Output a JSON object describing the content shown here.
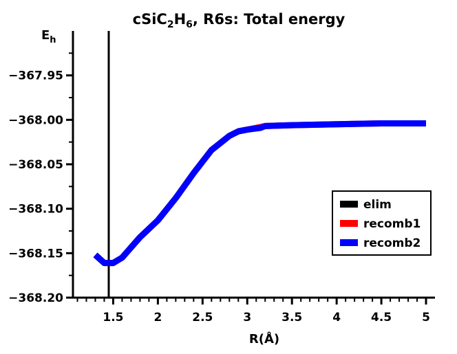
{
  "chart_data": {
    "type": "line",
    "title": {
      "main": "cSiC",
      "sub1": "2",
      "mid": "H",
      "sub2": "6",
      "rest": ", R6s: Total energy"
    },
    "ylabel": {
      "main": "E",
      "sub": "h"
    },
    "xlabel": "R(Å)",
    "xlim": [
      1.05,
      5.1
    ],
    "ylim": [
      -368.2,
      -367.9
    ],
    "xticks": [
      {
        "value": 1.5,
        "label": "1.5"
      },
      {
        "value": 2,
        "label": "2"
      },
      {
        "value": 2.5,
        "label": "2.5"
      },
      {
        "value": 3,
        "label": "3"
      },
      {
        "value": 3.5,
        "label": "3.5"
      },
      {
        "value": 4,
        "label": "4"
      },
      {
        "value": 4.5,
        "label": "4.5"
      },
      {
        "value": 5,
        "label": "5"
      }
    ],
    "yticks": [
      {
        "value": -367.95,
        "label": "−367.95"
      },
      {
        "value": -368.0,
        "label": "−368.00"
      },
      {
        "value": -368.05,
        "label": "−368.05"
      },
      {
        "value": -368.1,
        "label": "−368.10"
      },
      {
        "value": -368.15,
        "label": "−368.15"
      },
      {
        "value": -368.2,
        "label": "−368.20"
      }
    ],
    "elim_x": 1.45,
    "series": [
      {
        "name": "elim",
        "color": "#000000",
        "x": [
          1.45,
          1.45
        ],
        "y": [
          -368.2,
          -367.9
        ]
      },
      {
        "name": "recomb1",
        "color": "#ff0000",
        "x": [
          1.3,
          1.4,
          1.5,
          1.6,
          1.8,
          2.0,
          2.2,
          2.4,
          2.6,
          2.8,
          2.9,
          3.0,
          3.2,
          3.5,
          4.0,
          4.5,
          5.0
        ],
        "y": [
          -368.152,
          -368.161,
          -368.161,
          -368.155,
          -368.132,
          -368.113,
          -368.088,
          -368.06,
          -368.034,
          -368.018,
          -368.013,
          -368.011,
          -368.007,
          -368.006,
          -368.005,
          -368.004,
          -368.004
        ]
      },
      {
        "name": "recomb2",
        "color": "#0000ff",
        "x": [
          1.3,
          1.4,
          1.5,
          1.6,
          1.8,
          2.0,
          2.2,
          2.4,
          2.6,
          2.8,
          2.9,
          3.0,
          3.15,
          3.2,
          3.5,
          4.0,
          4.5,
          5.0
        ],
        "y": [
          -368.152,
          -368.161,
          -368.161,
          -368.155,
          -368.132,
          -368.113,
          -368.088,
          -368.06,
          -368.034,
          -368.018,
          -368.013,
          -368.011,
          -368.009,
          -368.007,
          -368.006,
          -368.005,
          -368.004,
          -368.004
        ]
      }
    ],
    "legend": {
      "position": "right",
      "entries": [
        {
          "name": "elim",
          "color": "#000000"
        },
        {
          "name": "recomb1",
          "color": "#ff0000"
        },
        {
          "name": "recomb2",
          "color": "#0000ff"
        }
      ]
    }
  }
}
